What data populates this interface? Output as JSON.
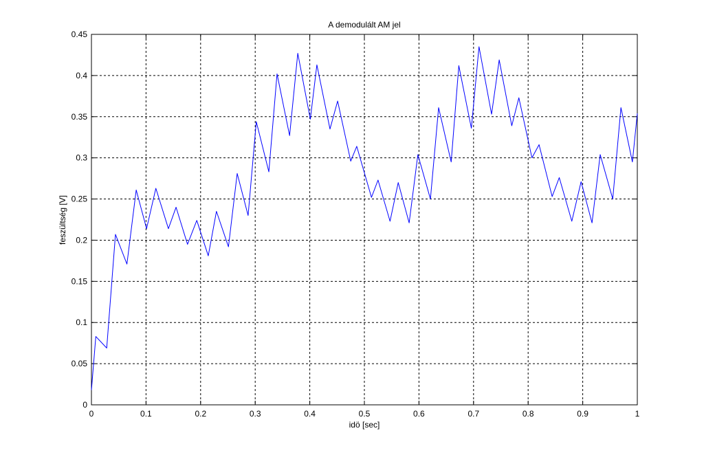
{
  "chart_data": {
    "type": "line",
    "title": "A demodulált AM jel",
    "x_label": "idö [sec]",
    "y_label": "feszültség [V]",
    "xlim": [
      0,
      1
    ],
    "xticks": [
      0,
      0.1,
      0.2,
      0.3,
      0.4,
      0.5,
      0.6,
      0.7,
      0.8,
      0.9,
      1
    ],
    "ylim": [
      0,
      0.45
    ],
    "yticks": [
      0,
      0.05,
      0.1,
      0.15,
      0.2,
      0.25,
      0.3,
      0.35,
      0.4,
      0.45
    ],
    "grid": true,
    "series": [
      {
        "color": "#0000ff",
        "x": [
          0,
          0.008,
          0.028,
          0.044,
          0.065,
          0.082,
          0.101,
          0.118,
          0.141,
          0.155,
          0.176,
          0.193,
          0.214,
          0.229,
          0.251,
          0.267,
          0.287,
          0.302,
          0.325,
          0.34,
          0.363,
          0.378,
          0.401,
          0.413,
          0.437,
          0.451,
          0.475,
          0.486,
          0.513,
          0.525,
          0.547,
          0.562,
          0.582,
          0.598,
          0.621,
          0.636,
          0.659,
          0.673,
          0.696,
          0.71,
          0.733,
          0.747,
          0.77,
          0.783,
          0.807,
          0.82,
          0.844,
          0.857,
          0.88,
          0.897,
          0.917,
          0.932,
          0.955,
          0.97,
          0.991,
          1
        ],
        "values": [
          0.018,
          0.083,
          0.069,
          0.207,
          0.171,
          0.261,
          0.214,
          0.263,
          0.214,
          0.24,
          0.195,
          0.224,
          0.181,
          0.235,
          0.192,
          0.281,
          0.23,
          0.344,
          0.283,
          0.402,
          0.327,
          0.427,
          0.347,
          0.413,
          0.335,
          0.369,
          0.296,
          0.314,
          0.252,
          0.273,
          0.223,
          0.27,
          0.221,
          0.304,
          0.25,
          0.361,
          0.295,
          0.412,
          0.336,
          0.435,
          0.353,
          0.419,
          0.339,
          0.373,
          0.3,
          0.316,
          0.253,
          0.276,
          0.223,
          0.271,
          0.221,
          0.304,
          0.25,
          0.361,
          0.295,
          0.354
        ]
      }
    ]
  }
}
